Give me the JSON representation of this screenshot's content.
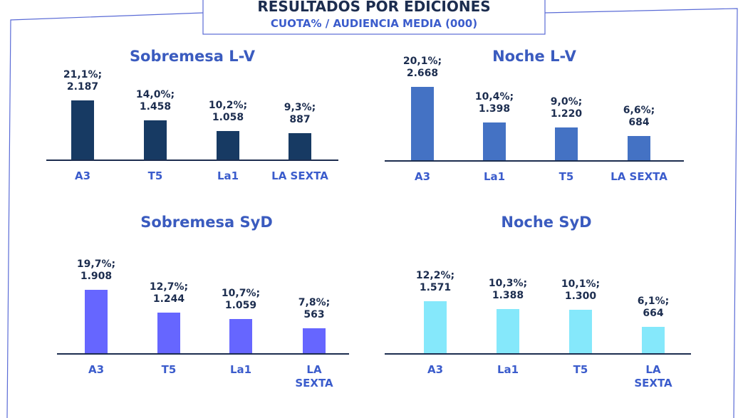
{
  "header": {
    "title": "RESULTADOS POR EDICIONES",
    "subtitle": "CUOTA% / AUDIENCIA MEDIA (000)"
  },
  "chart_data": [
    {
      "type": "bar",
      "title": "Sobremesa L-V",
      "color": "#173a63",
      "categories": [
        "A3",
        "T5",
        "La1",
        "LA SEXTA"
      ],
      "values": [
        21.1,
        14.0,
        10.2,
        9.3
      ],
      "value_labels": [
        "21,1%;",
        "14,0%;",
        "10,2%;",
        "9,3%;"
      ],
      "audience": [
        2187,
        1458,
        1058,
        887
      ],
      "audience_labels": [
        "2.187",
        "1.458",
        "1.058",
        "887"
      ]
    },
    {
      "type": "bar",
      "title": "Noche L-V",
      "color": "#4472c4",
      "categories": [
        "A3",
        "La1",
        "T5",
        "LA SEXTA"
      ],
      "values": [
        20.1,
        10.4,
        9.0,
        6.6
      ],
      "value_labels": [
        "20,1%;",
        "10,4%;",
        "9,0%;",
        "6,6%;"
      ],
      "audience": [
        2668,
        1398,
        1220,
        684
      ],
      "audience_labels": [
        "2.668",
        "1.398",
        "1.220",
        "684"
      ]
    },
    {
      "type": "bar",
      "title": "Sobremesa SyD",
      "color": "#6666ff",
      "categories": [
        "A3",
        "T5",
        "La1",
        "LA SEXTA"
      ],
      "values": [
        19.7,
        12.7,
        10.7,
        7.8
      ],
      "value_labels": [
        "19,7%;",
        "12,7%;",
        "10,7%;",
        "7,8%;"
      ],
      "audience": [
        1908,
        1244,
        1059,
        563
      ],
      "audience_labels": [
        "1.908",
        "1.244",
        "1.059",
        "563"
      ]
    },
    {
      "type": "bar",
      "title": "Noche SyD",
      "color": "#85e8fb",
      "categories": [
        "A3",
        "La1",
        "T5",
        "LA SEXTA"
      ],
      "values": [
        12.2,
        10.3,
        10.1,
        6.1
      ],
      "value_labels": [
        "12,2%;",
        "10,3%;",
        "10,1%;",
        "6,1%;"
      ],
      "audience": [
        1571,
        1388,
        1300,
        664
      ],
      "audience_labels": [
        "1.571",
        "1.388",
        "1.300",
        "664"
      ]
    }
  ]
}
